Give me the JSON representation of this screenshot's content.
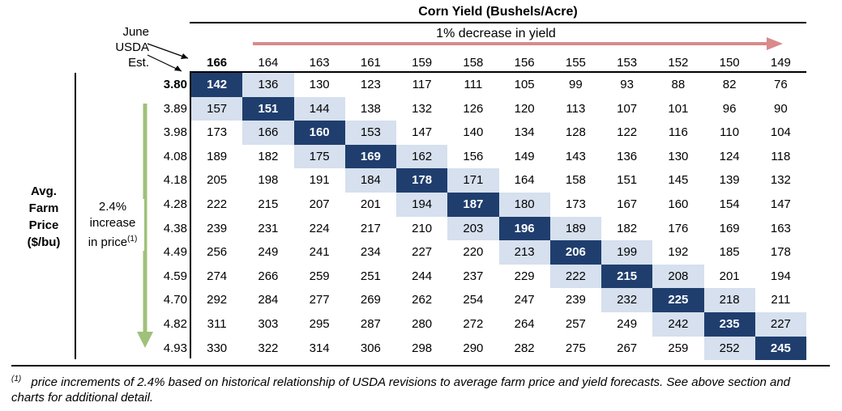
{
  "chart_data": {
    "type": "table",
    "title": "Corn Yield (Bushels/Acre)",
    "yield_direction_label": "1% decrease in yield",
    "estimate_label": [
      "June",
      "USDA",
      "Est."
    ],
    "row_header_label": [
      "Avg.",
      "Farm",
      "Price",
      "($/bu)"
    ],
    "price_direction_label": [
      "2.4%",
      "increase",
      "in price"
    ],
    "price_direction_footnote_mark": "(1)",
    "columns": [
      "166",
      "164",
      "163",
      "161",
      "159",
      "158",
      "156",
      "155",
      "153",
      "152",
      "150",
      "149"
    ],
    "rows": [
      "3.80",
      "3.89",
      "3.98",
      "4.08",
      "4.18",
      "4.28",
      "4.38",
      "4.49",
      "4.59",
      "4.70",
      "4.82",
      "4.93"
    ],
    "values": [
      [
        142,
        136,
        130,
        123,
        117,
        111,
        105,
        99,
        93,
        88,
        82,
        76
      ],
      [
        157,
        151,
        144,
        138,
        132,
        126,
        120,
        113,
        107,
        101,
        96,
        90
      ],
      [
        173,
        166,
        160,
        153,
        147,
        140,
        134,
        128,
        122,
        116,
        110,
        104
      ],
      [
        189,
        182,
        175,
        169,
        162,
        156,
        149,
        143,
        136,
        130,
        124,
        118
      ],
      [
        205,
        198,
        191,
        184,
        178,
        171,
        164,
        158,
        151,
        145,
        139,
        132
      ],
      [
        222,
        215,
        207,
        201,
        194,
        187,
        180,
        173,
        167,
        160,
        154,
        147
      ],
      [
        239,
        231,
        224,
        217,
        210,
        203,
        196,
        189,
        182,
        176,
        169,
        163
      ],
      [
        256,
        249,
        241,
        234,
        227,
        220,
        213,
        206,
        199,
        192,
        185,
        178
      ],
      [
        274,
        266,
        259,
        251,
        244,
        237,
        229,
        222,
        215,
        208,
        201,
        194
      ],
      [
        292,
        284,
        277,
        269,
        262,
        254,
        247,
        239,
        232,
        225,
        218,
        211
      ],
      [
        311,
        303,
        295,
        287,
        280,
        272,
        264,
        257,
        249,
        242,
        235,
        227
      ],
      [
        330,
        322,
        314,
        306,
        298,
        290,
        282,
        275,
        267,
        259,
        252,
        245
      ]
    ],
    "colors": {
      "diagonal": "#1f3e6e",
      "adjacent": "#d6e0ee",
      "yield_arrow": "#d98a8a",
      "price_arrow": "#9fc17a"
    }
  },
  "footnote": {
    "mark": "(1)",
    "text": "price increments of 2.4% based on historical relationship of USDA revisions to average farm price and yield forecasts. See above section and charts for additional detail."
  }
}
